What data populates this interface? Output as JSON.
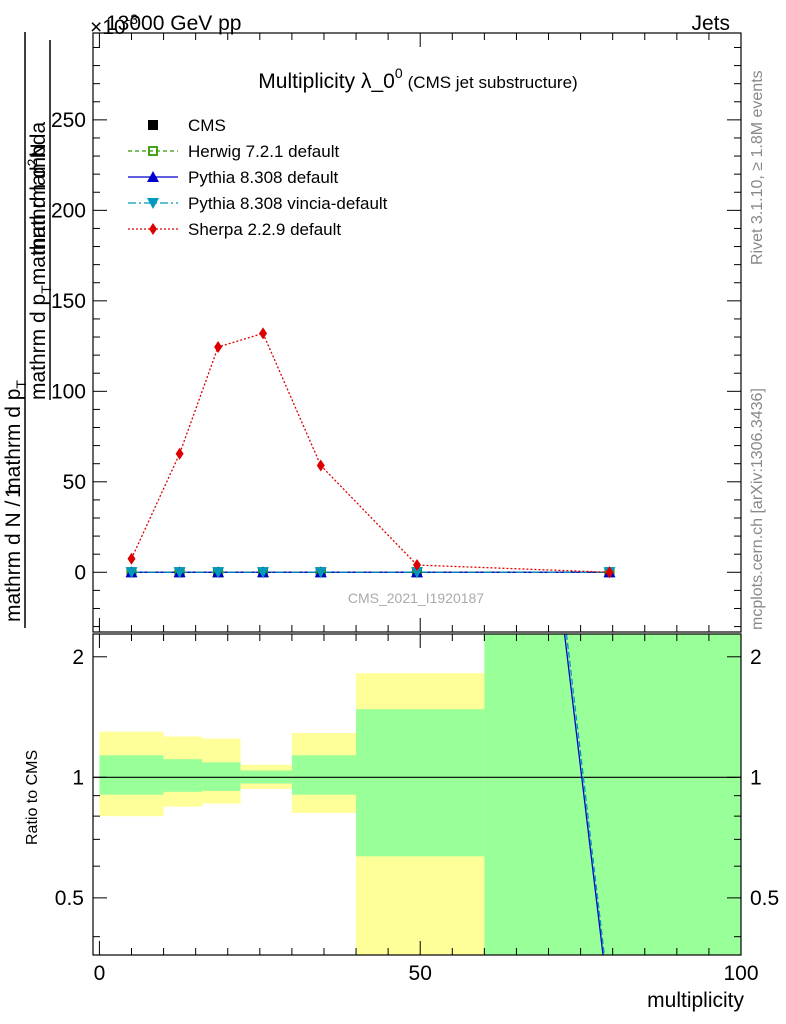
{
  "header": {
    "energy_label": "13000 GeV pp",
    "process_label": "Jets",
    "exponent_label": "×10",
    "exponent_power": "-3"
  },
  "side_labels": {
    "rivet": "Rivet 3.1.10, ≥ 1.8M events",
    "mcplots": "mcplots.cern.ch [arXiv:1306.3436]"
  },
  "chart_data": [
    {
      "type": "line",
      "title": "Multiplicity λ_0",
      "title_superscript": "0",
      "subtitle": "(CMS jet substructure)",
      "watermark": "CMS_2021_I1920187",
      "ylabel": {
        "numerator_one": "1",
        "denominator": "mathrm d N / mathrm d p",
        "denominator_sub": "T",
        "numerator": "mathrm d",
        "numerator_sup": "2",
        "numerator_tail": "N",
        "den2a": "mathrm d p",
        "den2_sub": "T",
        "den2b": "mathrm d lambda"
      },
      "xlim": [
        -1,
        100
      ],
      "ylim": [
        -33,
        298
      ],
      "yticks": [
        0,
        50,
        100,
        150,
        200,
        250
      ],
      "ytick_labels": [
        "0",
        "50",
        "100",
        "150",
        "200",
        "250"
      ],
      "legend_position": "top-left",
      "series": [
        {
          "name": "CMS",
          "color": "#000000",
          "marker": "square",
          "dash": "none",
          "x": [
            5,
            12.5,
            18.5,
            25.5,
            34.5,
            49.5,
            79.5
          ],
          "y": [
            0,
            0,
            0,
            0,
            0,
            0,
            0
          ]
        },
        {
          "name": "Herwig 7.2.1 default",
          "color": "#339900",
          "marker": "open-square",
          "dash": "4,3",
          "x": [
            5,
            12.5,
            18.5,
            25.5,
            34.5,
            49.5,
            79.5
          ],
          "y": [
            0,
            0,
            0,
            0,
            0,
            0,
            0
          ]
        },
        {
          "name": "Pythia 8.308 default",
          "color": "#0000cc",
          "marker": "triangle-up",
          "dash": "none",
          "x": [
            5,
            12.5,
            18.5,
            25.5,
            34.5,
            49.5,
            79.5
          ],
          "y": [
            0,
            0,
            0,
            0,
            0,
            0,
            0
          ]
        },
        {
          "name": "Pythia 8.308 vincia-default",
          "color": "#0099bb",
          "marker": "triangle-down",
          "dash": "8,3,2,3",
          "x": [
            5,
            12.5,
            18.5,
            25.5,
            34.5,
            49.5,
            79.5
          ],
          "y": [
            0,
            0,
            0,
            0,
            0,
            0,
            0
          ]
        },
        {
          "name": "Sherpa 2.2.9 default",
          "color": "#dd0000",
          "marker": "diamond",
          "dash": "2,2",
          "x": [
            5,
            12.5,
            18.5,
            25.5,
            34.5,
            49.5,
            79.5
          ],
          "y": [
            7.5,
            65.5,
            124.5,
            132,
            59,
            4,
            0
          ]
        }
      ]
    },
    {
      "type": "line",
      "ylabel": "Ratio to CMS",
      "xlabel": "multiplicity",
      "xlim": [
        -1,
        100
      ],
      "ylim": [
        0.36,
        2.28
      ],
      "yscale": "log",
      "yticks": [
        0.5,
        1,
        2
      ],
      "ytick_labels": [
        "0.5",
        "1",
        "2"
      ],
      "xticks": [
        0,
        50,
        100
      ],
      "xtick_labels": [
        "0",
        "50",
        "100"
      ],
      "bands": [
        {
          "x0": 0,
          "x1": 10,
          "outer": [
            0.8,
            1.3
          ],
          "inner": [
            0.905,
            1.135
          ]
        },
        {
          "x0": 10,
          "x1": 16,
          "outer": [
            0.845,
            1.265
          ],
          "inner": [
            0.92,
            1.11
          ]
        },
        {
          "x0": 16,
          "x1": 22,
          "outer": [
            0.86,
            1.25
          ],
          "inner": [
            0.925,
            1.09
          ]
        },
        {
          "x0": 22,
          "x1": 30,
          "outer": [
            0.935,
            1.075
          ],
          "inner": [
            0.965,
            1.04
          ]
        },
        {
          "x0": 30,
          "x1": 40,
          "outer": [
            0.815,
            1.29
          ],
          "inner": [
            0.905,
            1.135
          ]
        },
        {
          "x0": 40,
          "x1": 60,
          "outer": [
            0.36,
            1.82
          ],
          "inner": [
            0.635,
            1.48
          ]
        },
        {
          "x0": 60,
          "x1": 100,
          "outer": [
            0.36,
            2.28
          ],
          "inner": [
            0.36,
            2.28
          ]
        }
      ],
      "band_colors": {
        "outer": "#ffff99",
        "inner": "#99ff99"
      },
      "series": [
        {
          "name": "Pythia 8.308 default",
          "color": "#0000cc",
          "dash": "none",
          "x": [
            72.5,
            78.5
          ],
          "y": [
            2.28,
            0.36
          ]
        },
        {
          "name": "Pythia 8.308 vincia-default",
          "color": "#0099bb",
          "dash": "6,3",
          "x": [
            72.8,
            78.7
          ],
          "y": [
            2.28,
            0.36
          ]
        }
      ]
    }
  ]
}
